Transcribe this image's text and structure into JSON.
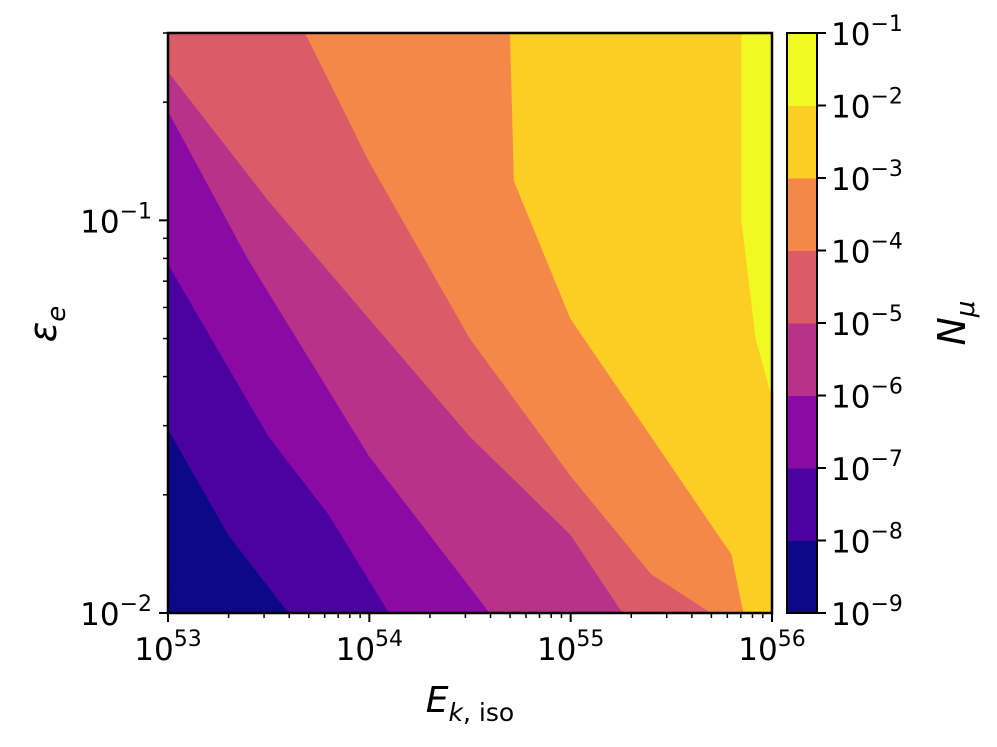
{
  "chart_data": {
    "type": "heatmap",
    "subtype": "filled-contour",
    "title": "",
    "xlabel": "E_{k,iso}",
    "ylabel": "ε_e",
    "xscale": "log",
    "yscale": "log",
    "xlim": [
      1e+53,
      1e+56
    ],
    "ylim": [
      0.01,
      0.3
    ],
    "x_ticks": [
      {
        "value": 1e+53,
        "base": "10",
        "exp": "53"
      },
      {
        "value": 1e+54,
        "base": "10",
        "exp": "54"
      },
      {
        "value": 1e+55,
        "base": "10",
        "exp": "55"
      },
      {
        "value": 1e+56,
        "base": "10",
        "exp": "56"
      }
    ],
    "y_ticks": [
      {
        "value": 0.1,
        "base": "10",
        "exp": "−1"
      },
      {
        "value": 0.01,
        "base": "10",
        "exp": "−2"
      }
    ],
    "colorbar": {
      "label": "N_μ",
      "scale": "log",
      "levels_exp": [
        -9,
        -8,
        -7,
        -6,
        -5,
        -4,
        -3,
        -2,
        -1
      ],
      "tick_labels": [
        {
          "base": "10",
          "exp": "−9"
        },
        {
          "base": "10",
          "exp": "−8"
        },
        {
          "base": "10",
          "exp": "−7"
        },
        {
          "base": "10",
          "exp": "−6"
        },
        {
          "base": "10",
          "exp": "−5"
        },
        {
          "base": "10",
          "exp": "−4"
        },
        {
          "base": "10",
          "exp": "−3"
        },
        {
          "base": "10",
          "exp": "−2"
        },
        {
          "base": "10",
          "exp": "−1"
        }
      ],
      "band_colors": [
        "#0d0887",
        "#4c02a1",
        "#8b0aa5",
        "#b83289",
        "#db5c68",
        "#f48849",
        "#fccd25",
        "#f0f921"
      ]
    },
    "contour_boundaries": [
      {
        "lower_exp": -9,
        "points": [
          [
            53.0,
            -1.93
          ],
          [
            53.1,
            -2.0
          ]
        ]
      },
      {
        "lower_exp": -8,
        "points": [
          [
            53.0,
            -1.53
          ],
          [
            53.3,
            -1.8
          ],
          [
            53.6,
            -2.0
          ]
        ]
      },
      {
        "lower_exp": -7,
        "points": [
          [
            53.0,
            -1.11
          ],
          [
            53.5,
            -1.55
          ],
          [
            53.8,
            -1.75
          ],
          [
            54.1,
            -2.0
          ]
        ]
      },
      {
        "lower_exp": -6,
        "points": [
          [
            53.0,
            -0.72
          ],
          [
            53.4,
            -1.1
          ],
          [
            54.0,
            -1.6
          ],
          [
            54.6,
            -2.0
          ]
        ]
      },
      {
        "lower_exp": -5,
        "points": [
          [
            53.0,
            -0.62
          ],
          [
            53.5,
            -0.95
          ],
          [
            54.0,
            -1.25
          ],
          [
            54.5,
            -1.55
          ],
          [
            55.0,
            -1.8
          ],
          [
            55.26,
            -2.0
          ]
        ]
      },
      {
        "lower_exp": -4,
        "points": [
          [
            53.68,
            -0.52
          ],
          [
            54.0,
            -0.85
          ],
          [
            54.5,
            -1.3
          ],
          [
            55.0,
            -1.65
          ],
          [
            55.4,
            -1.9
          ],
          [
            55.7,
            -2.0
          ]
        ]
      },
      {
        "lower_exp": -3,
        "points": [
          [
            54.7,
            -0.52
          ],
          [
            54.72,
            -0.9
          ],
          [
            55.0,
            -1.25
          ],
          [
            55.4,
            -1.55
          ],
          [
            55.8,
            -1.85
          ],
          [
            55.86,
            -2.0
          ]
        ]
      },
      {
        "lower_exp": -2,
        "points": [
          [
            55.85,
            -0.52
          ],
          [
            55.85,
            -1.0
          ],
          [
            55.92,
            -1.3
          ],
          [
            56.0,
            -1.45
          ]
        ]
      }
    ]
  }
}
